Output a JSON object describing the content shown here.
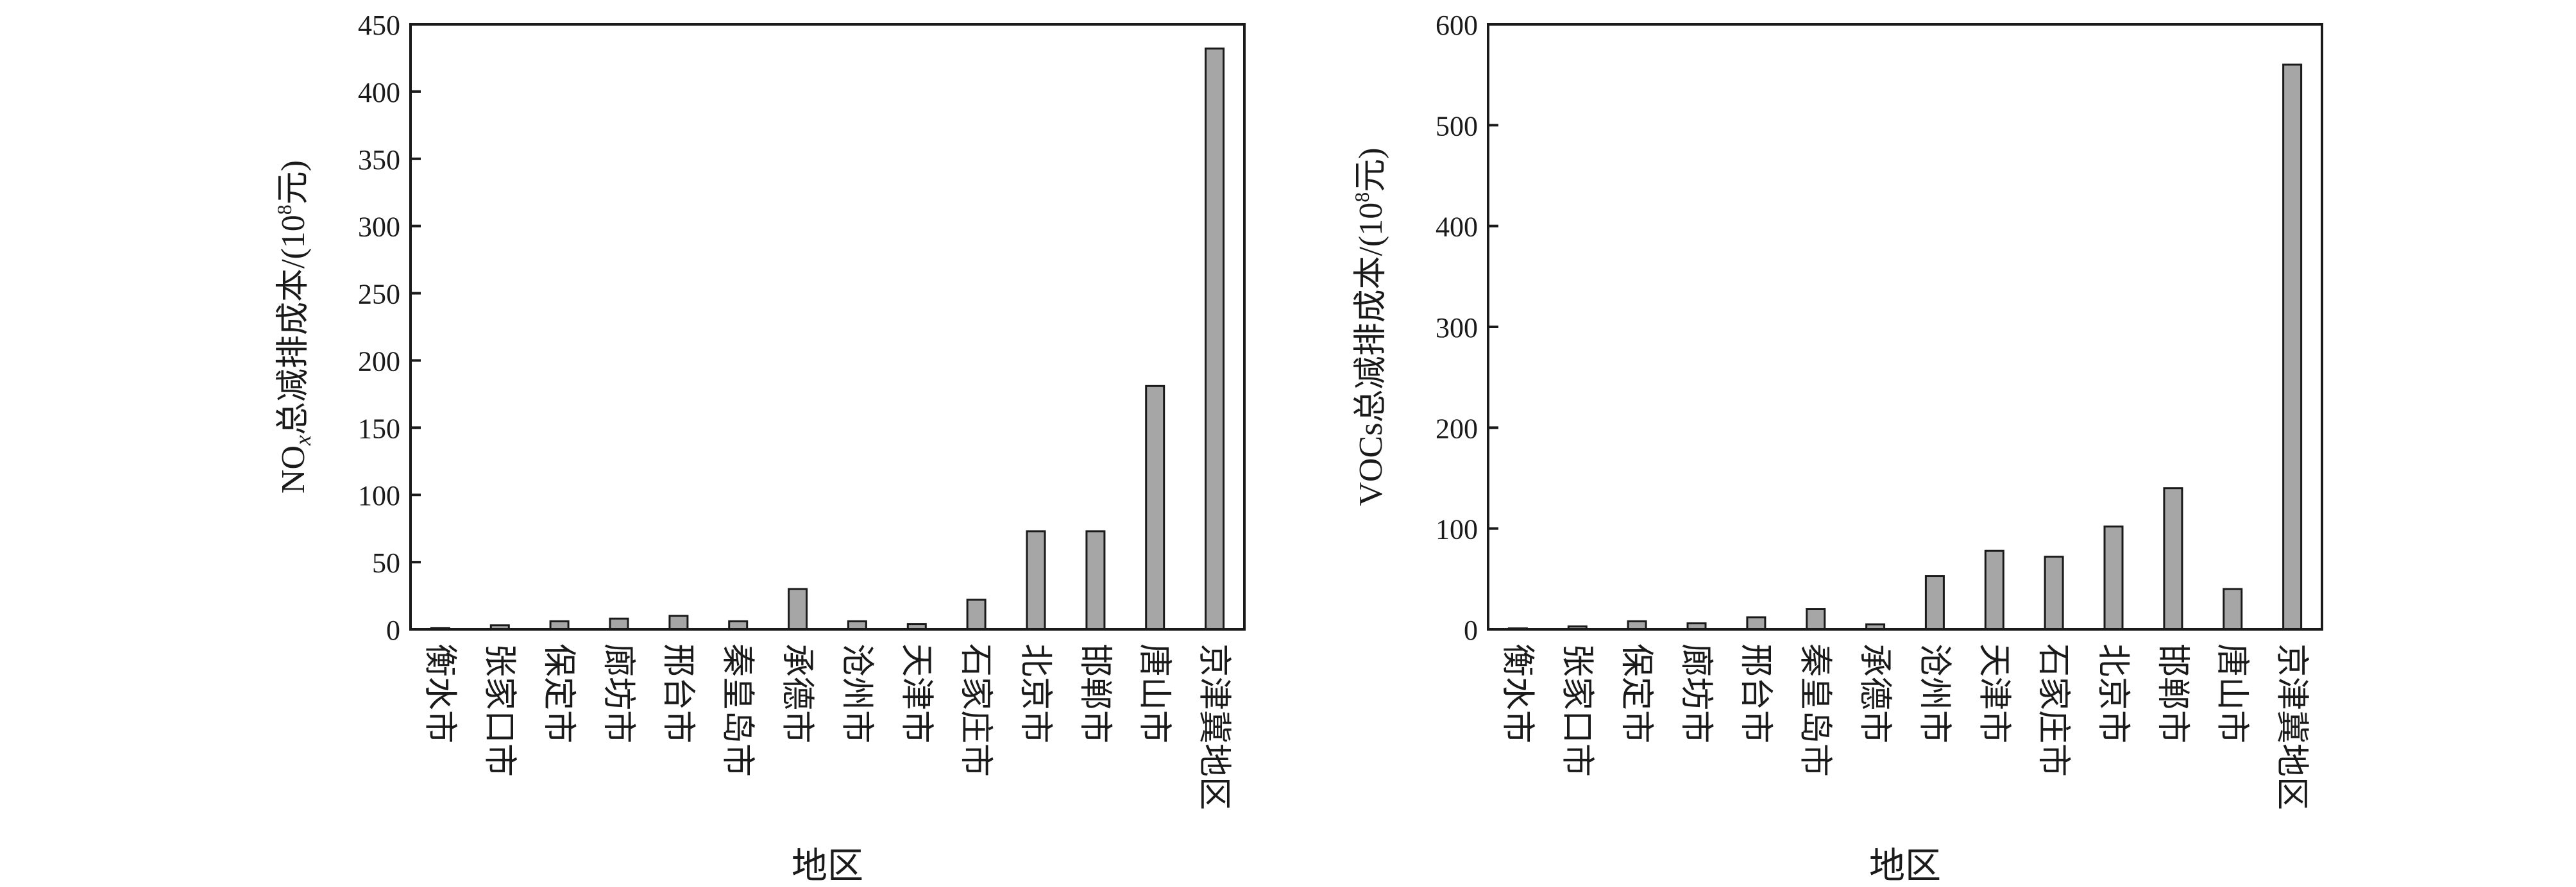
{
  "chart_data": [
    {
      "type": "bar",
      "categories": [
        "衡水市",
        "张家口市",
        "保定市",
        "廊坊市",
        "邢台市",
        "秦皇岛市",
        "承德市",
        "沧州市",
        "天津市",
        "石家庄市",
        "北京市",
        "邯郸市",
        "唐山市",
        "京津冀地区"
      ],
      "values": [
        1,
        3,
        6,
        8,
        10,
        6,
        30,
        6,
        4,
        22,
        73,
        73,
        181,
        432
      ],
      "ylim": [
        0,
        450
      ],
      "yticks": [
        0,
        50,
        100,
        150,
        200,
        250,
        300,
        350,
        400,
        450
      ],
      "xlabel": "地区",
      "ylabel_main": "NO",
      "ylabel_sub": "x",
      "ylabel_rest": "总减排成本/(10",
      "ylabel_sup": "8",
      "ylabel_end": "元)",
      "bar_color": "#a6a6a6",
      "grid": false
    },
    {
      "type": "bar",
      "categories": [
        "衡水市",
        "张家口市",
        "保定市",
        "廊坊市",
        "邢台市",
        "秦皇岛市",
        "承德市",
        "沧州市",
        "天津市",
        "石家庄市",
        "北京市",
        "邯郸市",
        "唐山市",
        "京津冀地区"
      ],
      "values": [
        1,
        3,
        8,
        6,
        12,
        20,
        5,
        53,
        78,
        72,
        102,
        140,
        40,
        560
      ],
      "ylim": [
        0,
        600
      ],
      "yticks": [
        0,
        100,
        200,
        300,
        400,
        500,
        600
      ],
      "xlabel": "地区",
      "ylabel_main": "VOCs总减排成本/(10",
      "ylabel_sup": "8",
      "ylabel_end": "元)",
      "bar_color": "#a6a6a6",
      "grid": false
    }
  ]
}
